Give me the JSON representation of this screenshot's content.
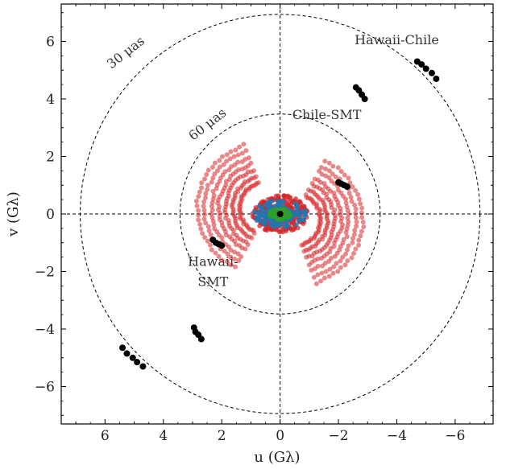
{
  "chart_data": {
    "type": "scatter",
    "title": "",
    "xlabel": "u (Gλ)",
    "ylabel": "v (Gλ)",
    "xlim": [
      7.5,
      -7.3
    ],
    "ylim": [
      -7.3,
      7.3
    ],
    "x_ticks": [
      "6",
      "4",
      "2",
      "0",
      "−2",
      "−4",
      "−6"
    ],
    "x_tick_values": [
      6,
      4,
      2,
      0,
      -2,
      -4,
      -6
    ],
    "y_ticks": [
      "6",
      "4",
      "2",
      "0",
      "−2",
      "−4",
      "−6"
    ],
    "y_tick_values": [
      6,
      4,
      2,
      0,
      -2,
      -4,
      -6
    ],
    "grid": false,
    "circles": [
      {
        "label": "30 μas",
        "radius": 6.85
      },
      {
        "label": "60 μas",
        "radius": 3.43
      }
    ],
    "annotations": [
      {
        "text": "Hawaii-Chile",
        "x": -4.0,
        "y": 5.9
      },
      {
        "text": "Chile-SMT",
        "x": -1.6,
        "y": 3.3
      },
      {
        "text": "Hawaii-",
        "x": 2.3,
        "y": -1.8
      },
      {
        "text": "SMT",
        "x": 2.3,
        "y": -2.5
      }
    ],
    "colors": {
      "long_baselines": "#000000",
      "short_baselines": "#d62728",
      "intermediate": "#1f77b4",
      "core": "#2ca02c"
    },
    "series": [
      {
        "color_key": "long_baselines",
        "points": [
          [
            -4.7,
            5.3
          ],
          [
            -4.85,
            5.2
          ],
          [
            -5.0,
            5.05
          ],
          [
            -5.2,
            4.9
          ],
          [
            -5.35,
            4.7
          ],
          [
            -2.6,
            4.4
          ],
          [
            -2.7,
            4.3
          ],
          [
            -2.8,
            4.15
          ],
          [
            -2.9,
            4.0
          ],
          [
            -2.0,
            1.1
          ],
          [
            -2.1,
            1.05
          ],
          [
            -2.2,
            1.0
          ],
          [
            -2.3,
            0.95
          ],
          [
            2.3,
            -0.9
          ],
          [
            2.2,
            -1.0
          ],
          [
            2.1,
            -1.05
          ],
          [
            2.0,
            -1.1
          ],
          [
            5.4,
            -4.65
          ],
          [
            5.25,
            -4.85
          ],
          [
            5.05,
            -5.0
          ],
          [
            4.9,
            -5.15
          ],
          [
            4.7,
            -5.3
          ],
          [
            2.95,
            -3.95
          ],
          [
            2.9,
            -4.1
          ],
          [
            2.8,
            -4.2
          ],
          [
            2.7,
            -4.35
          ],
          [
            0,
            0
          ]
        ]
      }
    ]
  }
}
